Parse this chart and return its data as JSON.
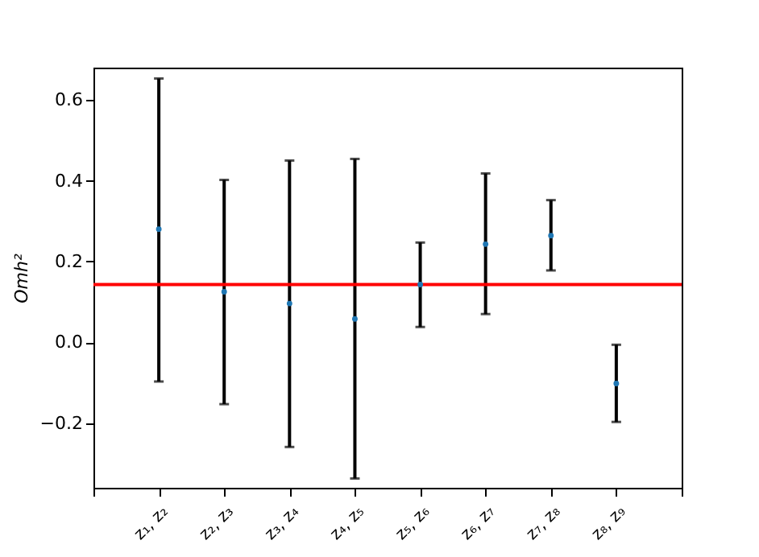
{
  "chart_data": {
    "type": "scatter",
    "ylabel": "Omh²",
    "marker": "circle",
    "color": "#1f77b4",
    "categories": [
      null,
      "z₁, z₂",
      "z₂, z₃",
      "z₃, z₄",
      "z₄, z₅",
      "z₅, z₆",
      "z₆, z₇",
      "z₇, z₈",
      "z₈, z₉",
      null
    ],
    "values": [
      null,
      0.28,
      0.125,
      0.096,
      0.058,
      0.143,
      0.243,
      0.264,
      -0.102,
      null
    ],
    "errors": [
      null,
      [
        -0.097,
        0.653
      ],
      [
        -0.153,
        0.402
      ],
      [
        -0.259,
        0.45
      ],
      [
        -0.337,
        0.454
      ],
      [
        0.038,
        0.247
      ],
      [
        0.07,
        0.418
      ],
      [
        0.178,
        0.352
      ],
      [
        -0.197,
        -0.006
      ],
      null
    ],
    "ylim": [
      -0.36,
      0.68
    ],
    "yticks": [
      {
        "value": -0.2,
        "label": "−0.2"
      },
      {
        "value": 0,
        "label": "0.0"
      },
      0.2,
      0.4,
      0.6
    ],
    "ref_lines": [
      {
        "axis": "y",
        "value": 0.143,
        "color": "#ff0000"
      }
    ]
  }
}
